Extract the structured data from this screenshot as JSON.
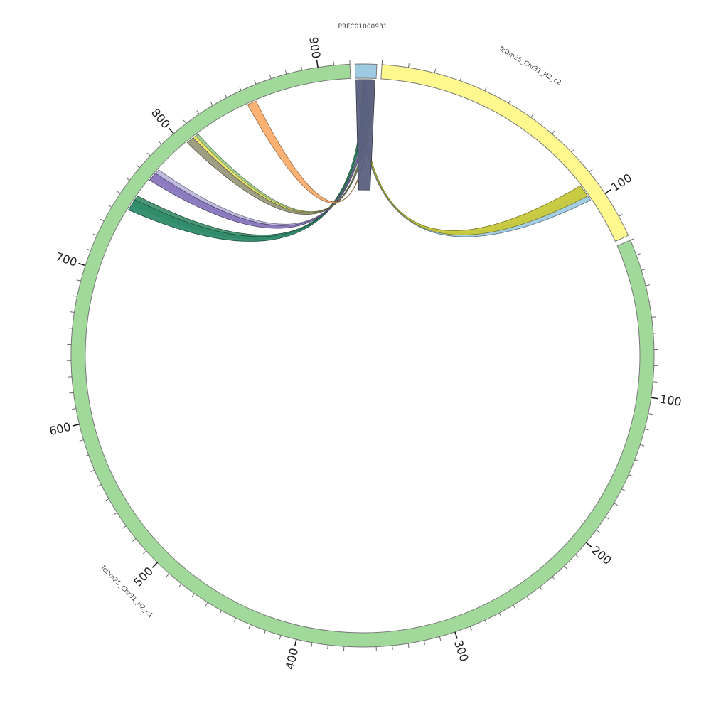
{
  "chart_data": {
    "type": "chord",
    "title": "",
    "segments": [
      {
        "name": "TcDm25_Chr31_H2_c1",
        "color": "#a1d99b",
        "length": 920,
        "start_angle_deg": 66.7,
        "end_angle_deg": 357.5,
        "tick_labels": [
          100,
          200,
          300,
          400,
          500,
          600,
          700,
          800,
          900
        ],
        "label_angle_deg": 225
      },
      {
        "name": "PRFC01000931",
        "color": "#9ecae1",
        "length": 8,
        "start_angle_deg": 358.5,
        "end_angle_deg": 2.8,
        "tick_labels": [],
        "label_angle_deg": 0
      },
      {
        "name": "TcDm25_Chr31_H2_c2",
        "color": "#fff88f",
        "length": 118,
        "start_angle_deg": 3.8,
        "end_angle_deg": 65.7,
        "tick_labels": [
          100
        ],
        "label_angle_deg": 30
      }
    ],
    "links": [
      {
        "color": "#9ecae1",
        "source": {
          "segment": "PRFC01000931",
          "start": 1.0,
          "end": 1.8
        },
        "target": {
          "segment": "TcDm25_Chr31_H2_c2",
          "start": 95,
          "end": 99
        }
      },
      {
        "color": "#c7c83a",
        "source": {
          "segment": "PRFC01000931",
          "start": 1.6,
          "end": 2.6
        },
        "target": {
          "segment": "TcDm25_Chr31_H2_c2",
          "start": 92,
          "end": 97
        }
      },
      {
        "color": "#41916f",
        "source": {
          "segment": "PRFC01000931",
          "start": 2.8,
          "end": 3.8
        },
        "target": {
          "segment": "TcDm25_Chr31_H2_c1",
          "start": 748,
          "end": 755
        }
      },
      {
        "color": "#2e8b6a",
        "source": {
          "segment": "PRFC01000931",
          "start": 3.6,
          "end": 4.6
        },
        "target": {
          "segment": "TcDm25_Chr31_H2_c1",
          "start": 744,
          "end": 752
        }
      },
      {
        "color": "#bcb8dc",
        "source": {
          "segment": "PRFC01000931",
          "start": 4.2,
          "end": 5.2
        },
        "target": {
          "segment": "TcDm25_Chr31_H2_c1",
          "start": 771,
          "end": 777
        }
      },
      {
        "color": "#8a77bf",
        "source": {
          "segment": "PRFC01000931",
          "start": 4.8,
          "end": 5.6
        },
        "target": {
          "segment": "TcDm25_Chr31_H2_c1",
          "start": 768,
          "end": 774
        }
      },
      {
        "color": "#9ccf90",
        "source": {
          "segment": "PRFC01000931",
          "start": 5.2,
          "end": 6.0
        },
        "target": {
          "segment": "TcDm25_Chr31_H2_c1",
          "start": 808,
          "end": 812
        }
      },
      {
        "color": "#f4eb6a",
        "source": {
          "segment": "PRFC01000931",
          "start": 5.8,
          "end": 6.4
        },
        "target": {
          "segment": "TcDm25_Chr31_H2_c1",
          "start": 806,
          "end": 810
        }
      },
      {
        "color": "#9a9a80",
        "source": {
          "segment": "PRFC01000931",
          "start": 6.0,
          "end": 6.8
        },
        "target": {
          "segment": "TcDm25_Chr31_H2_c1",
          "start": 803,
          "end": 808
        }
      },
      {
        "color": "#fdae6b",
        "source": {
          "segment": "PRFC01000931",
          "start": 6.4,
          "end": 7.4
        },
        "target": {
          "segment": "TcDm25_Chr31_H2_c1",
          "start": 850,
          "end": 856
        }
      },
      {
        "color": "#5a6080",
        "source": {
          "segment": "PRFC01000931",
          "start": 0.2,
          "end": 7.6
        },
        "target": {
          "segment": "PRFC01000931",
          "start": 0.0,
          "end": 8.0
        }
      }
    ]
  }
}
